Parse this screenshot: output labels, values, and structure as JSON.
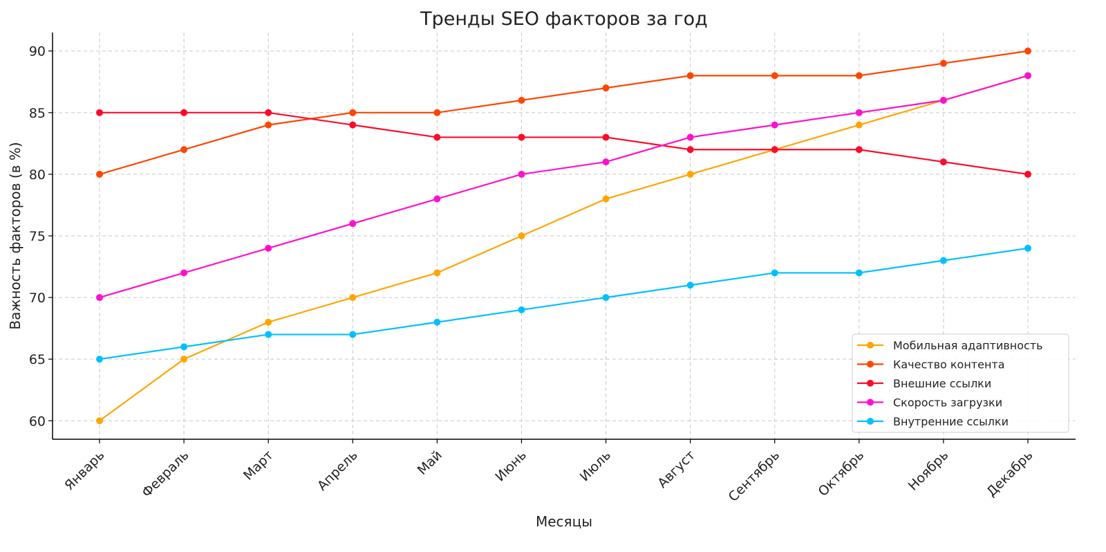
{
  "chart_data": {
    "type": "line",
    "title": "Тренды SEO факторов за год",
    "xlabel": "Месяцы",
    "ylabel": "Важность факторов (в %)",
    "categories": [
      "Январь",
      "Февраль",
      "Март",
      "Апрель",
      "Май",
      "Июнь",
      "Июль",
      "Август",
      "Сентябрь",
      "Октябрь",
      "Ноябрь",
      "Декабрь"
    ],
    "ylim": [
      58.5,
      91.5
    ],
    "yticks": [
      60,
      65,
      70,
      75,
      80,
      85,
      90
    ],
    "grid": true,
    "legend_position": "lower-right",
    "series": [
      {
        "name": "Мобильная адаптивность",
        "color": "#FFA500",
        "values": [
          60,
          65,
          68,
          70,
          72,
          75,
          78,
          80,
          82,
          84,
          86,
          88
        ]
      },
      {
        "name": "Качество контента",
        "color": "#FF4500",
        "values": [
          80,
          82,
          84,
          85,
          85,
          86,
          87,
          88,
          88,
          88,
          89,
          90
        ]
      },
      {
        "name": "Внешние ссылки",
        "color": "#FF0A2A",
        "values": [
          85,
          85,
          85,
          84,
          83,
          83,
          83,
          82,
          82,
          82,
          81,
          80
        ]
      },
      {
        "name": "Скорость загрузки",
        "color": "#FF10CC",
        "values": [
          70,
          72,
          74,
          76,
          78,
          80,
          81,
          83,
          84,
          85,
          86,
          88
        ]
      },
      {
        "name": "Внутренние ссылки",
        "color": "#00BFFF",
        "values": [
          65,
          66,
          67,
          67,
          68,
          69,
          70,
          71,
          72,
          72,
          73,
          74
        ]
      }
    ]
  }
}
